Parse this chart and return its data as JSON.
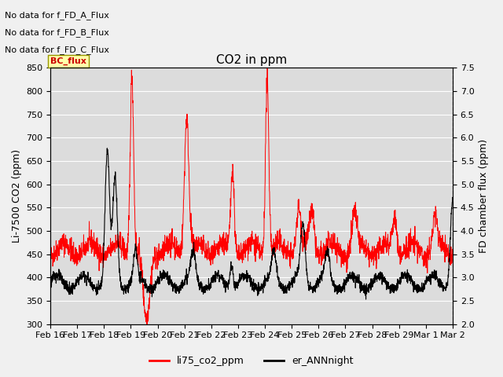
{
  "title": "CO2 in ppm",
  "ylabel_left": "Li-7500 CO2 (ppm)",
  "ylabel_right": "FD chamber flux (ppm)",
  "ylim_left": [
    300,
    850
  ],
  "ylim_right": [
    2.0,
    7.5
  ],
  "yticks_left": [
    300,
    350,
    400,
    450,
    500,
    550,
    600,
    650,
    700,
    750,
    800,
    850
  ],
  "yticks_right": [
    2.0,
    2.5,
    3.0,
    3.5,
    4.0,
    4.5,
    5.0,
    5.5,
    6.0,
    6.5,
    7.0,
    7.5
  ],
  "xtick_labels": [
    "Feb 16",
    "Feb 17",
    "Feb 18",
    "Feb 19",
    "Feb 20",
    "Feb 21",
    "Feb 22",
    "Feb 23",
    "Feb 24",
    "Feb 25",
    "Feb 26",
    "Feb 27",
    "Feb 28",
    "Feb 29",
    "Mar 1",
    "Mar 2"
  ],
  "legend_labels": [
    "li75_co2_ppm",
    "er_ANNnight"
  ],
  "legend_colors": [
    "#ff0000",
    "#000000"
  ],
  "line_color_red": "#ff0000",
  "line_color_black": "#000000",
  "annotations": [
    "No data for f_FD_A_Flux",
    "No data for f_FD_B_Flux",
    "No data for f_FD_C_Flux"
  ],
  "bc_flux_label": "BC_flux",
  "fig_facecolor": "#f0f0f0",
  "axes_facecolor": "#dcdcdc",
  "title_fontsize": 11,
  "axis_fontsize": 9,
  "tick_fontsize": 8,
  "annot_fontsize": 8
}
